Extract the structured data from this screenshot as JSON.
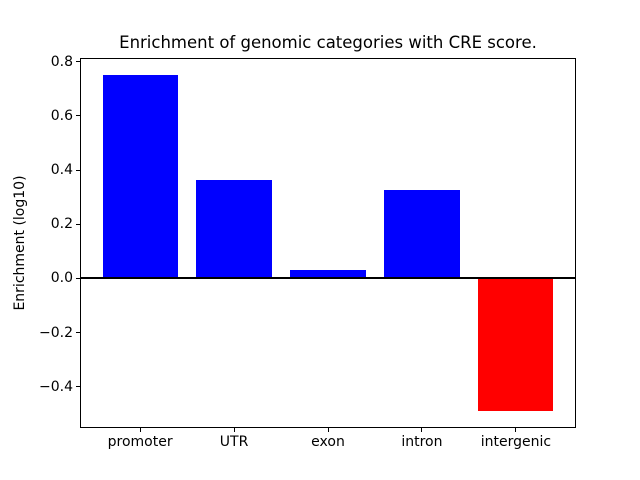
{
  "chart_data": {
    "type": "bar",
    "title": "Enrichment of genomic categories with CRE score.",
    "xlabel": "",
    "ylabel": "Enrichment (log10)",
    "categories": [
      "promoter",
      "UTR",
      "exon",
      "intron",
      "intergenic"
    ],
    "values": [
      0.75,
      0.365,
      0.03,
      0.325,
      -0.49
    ],
    "bar_colors": [
      "#0000ff",
      "#0000ff",
      "#0000ff",
      "#0000ff",
      "#ff0000"
    ],
    "positive_color": "#0000ff",
    "negative_color": "#ff0000",
    "bar_width": 0.8,
    "ylim": [
      -0.552,
      0.814
    ],
    "xlim": [
      -0.64,
      4.64
    ],
    "yticks": [
      {
        "value": 0.8,
        "label": "0.8"
      },
      {
        "value": 0.6,
        "label": "0.6"
      },
      {
        "value": 0.4,
        "label": "0.4"
      },
      {
        "value": 0.2,
        "label": "0.2"
      },
      {
        "value": 0.0,
        "label": "0.0"
      },
      {
        "value": -0.2,
        "label": "−0.2"
      },
      {
        "value": -0.4,
        "label": "−0.4"
      }
    ],
    "grid": false,
    "legend": null,
    "zero_line": {
      "color": "#000000",
      "width": 2
    },
    "background_color": "#ffffff",
    "axis_color": "#000000"
  }
}
